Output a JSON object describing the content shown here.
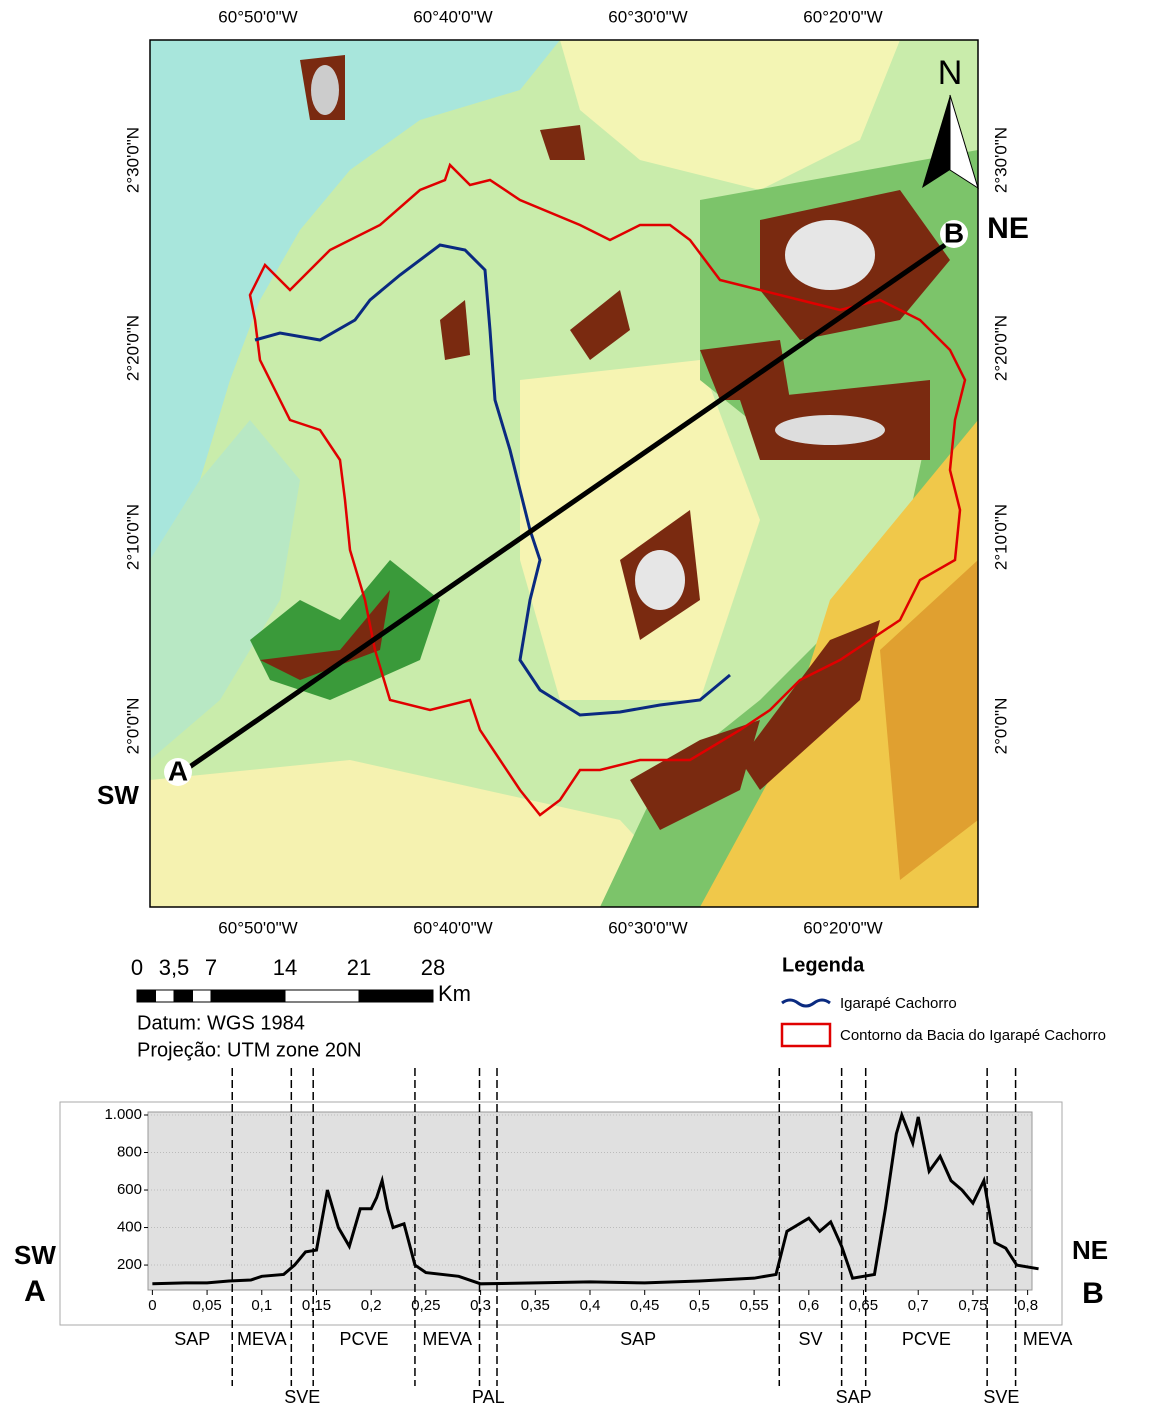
{
  "map": {
    "lon_labels": [
      "60°50'0\"W",
      "60°40'0\"W",
      "60°30'0\"W",
      "60°20'0\"W"
    ],
    "lat_labels": [
      "2°30'0\"N",
      "2°20'0\"N",
      "2°10'0\"N",
      "2°0'0\"N"
    ],
    "north": "N",
    "point_a": "A",
    "point_b": "B",
    "dir_a": "SW",
    "dir_b": "NE"
  },
  "scale": {
    "ticks": [
      0,
      {
        "value": 3.5,
        "label": "3,5"
      },
      7,
      14,
      21,
      28
    ],
    "unit": "Km",
    "datum": "Datum: WGS 1984",
    "projection": "Projeção: UTM zone 20N"
  },
  "legend": {
    "title": "Legenda",
    "items": [
      "Igarapé Cachorro",
      "Contorno da Bacia do Igarapé Cachorro"
    ]
  },
  "chart_data": {
    "type": "line",
    "color": "#000000",
    "x": [
      0,
      0.03,
      0.05,
      0.07,
      0.09,
      0.1,
      0.12,
      0.13,
      0.14,
      0.15,
      0.16,
      0.17,
      0.18,
      0.19,
      0.2,
      0.205,
      0.21,
      0.215,
      0.22,
      0.23,
      0.24,
      0.25,
      0.28,
      0.3,
      0.35,
      0.4,
      0.45,
      0.5,
      0.55,
      0.57,
      0.58,
      0.6,
      0.61,
      0.62,
      0.63,
      0.64,
      0.66,
      0.67,
      0.68,
      0.685,
      0.695,
      0.7,
      0.71,
      0.72,
      0.73,
      0.74,
      0.75,
      0.76,
      0.77,
      0.78,
      0.79,
      0.81
    ],
    "values": [
      100,
      105,
      105,
      115,
      120,
      140,
      150,
      200,
      270,
      280,
      600,
      400,
      300,
      500,
      500,
      560,
      650,
      500,
      400,
      420,
      200,
      160,
      140,
      100,
      105,
      110,
      105,
      115,
      130,
      150,
      380,
      450,
      380,
      430,
      300,
      130,
      150,
      500,
      900,
      1000,
      850,
      990,
      700,
      780,
      650,
      600,
      530,
      650,
      320,
      290,
      200,
      180
    ],
    "xlim": [
      -0.004,
      0.804
    ],
    "ylim": [
      67,
      1016
    ],
    "xticks": [
      0,
      {
        "value": 0.05,
        "label": "0,05"
      },
      {
        "value": 0.1,
        "label": "0,1"
      },
      {
        "value": 0.15,
        "label": "0,15"
      },
      {
        "value": 0.2,
        "label": "0,2"
      },
      {
        "value": 0.25,
        "label": "0,25"
      },
      {
        "value": 0.3,
        "label": "0,3"
      },
      {
        "value": 0.35,
        "label": "0,35"
      },
      {
        "value": 0.4,
        "label": "0,4"
      },
      {
        "value": 0.45,
        "label": "0,45"
      },
      {
        "value": 0.5,
        "label": "0,5"
      },
      {
        "value": 0.55,
        "label": "0,55"
      },
      {
        "value": 0.6,
        "label": "0,6"
      },
      {
        "value": 0.65,
        "label": "0,65"
      },
      {
        "value": 0.7,
        "label": "0,7"
      },
      {
        "value": 0.75,
        "label": "0,75"
      },
      {
        "value": 0.8,
        "label": "0,8"
      }
    ],
    "yticks": [
      200,
      400,
      600,
      800,
      {
        "value": 1000,
        "label": "1.000"
      }
    ],
    "grid": true,
    "dividers": [
      0.073,
      0.127,
      0.147,
      0.24,
      0.299,
      0.315,
      0.573,
      0.63,
      0.652,
      0.763,
      0.789
    ],
    "zones": [
      "SAP",
      "MEVA",
      "SVE",
      "PCVE",
      "MEVA",
      "PAL",
      "SAP",
      "SV",
      "SAP",
      "PCVE",
      "SVE",
      "MEVA"
    ]
  }
}
